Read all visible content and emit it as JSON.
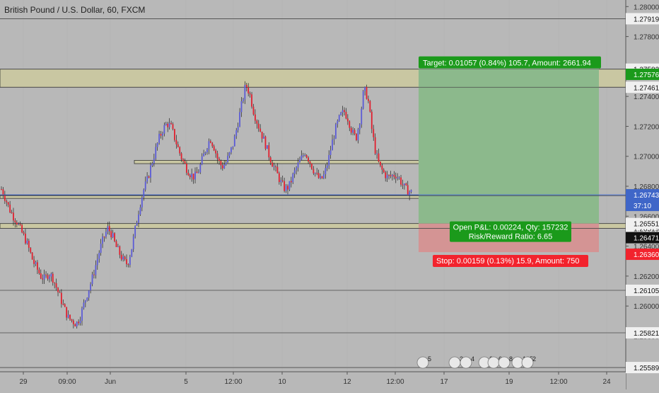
{
  "chart_data": {
    "type": "candlestick",
    "title": "British Pound / U.S. Dollar, 60, FXCM",
    "colors": {
      "background": "#b8b8b8",
      "up_candle": "#5b5bd6",
      "down_candle": "#e0202f",
      "zone_fill": "#c9c7a2",
      "target_zone": "#8cb98c",
      "stop_zone": "#d49494",
      "target_label": "#1b9a1b",
      "stop_label": "#f2232d",
      "current_price": "#3f66c8"
    },
    "price_axis": {
      "range": [
        1.25561,
        1.28044
      ],
      "ticks": [
        "1.28000",
        "1.27800",
        "1.27600",
        "1.27400",
        "1.27200",
        "1.27000",
        "1.26800",
        "1.26600",
        "1.26400",
        "1.26200",
        "1.26000",
        "1.25800"
      ]
    },
    "time_axis": {
      "labels": [
        "29",
        "09:00",
        "Jun",
        "5",
        "12:00",
        "10",
        "12",
        "12:00",
        "17",
        "19",
        "12:00",
        "24"
      ]
    },
    "horizontal_levels": [
      {
        "price": 1.27919,
        "label": "1.27919"
      },
      {
        "price": 1.27461,
        "label": "1.27461"
      },
      {
        "price": 1.26737,
        "label": "1.26737"
      },
      {
        "price": 1.26519,
        "label": "1.26519"
      },
      {
        "price": 1.26105,
        "label": "1.26105"
      },
      {
        "price": 1.25821,
        "label": "1.25821"
      },
      {
        "price": 1.25589,
        "label": "1.25589"
      }
    ],
    "price_markers": {
      "target": "1.27582",
      "target_2": "1.27576",
      "entry": "1.26551",
      "entry_2": "1.26471",
      "stop": "1.26360",
      "current": "1.26743",
      "countdown": "37:10"
    },
    "support_resistance_zones": [
      {
        "from": 1.27461,
        "to": 1.27582
      },
      {
        "from": 1.26951,
        "to": 1.26973
      },
      {
        "from": 1.26719,
        "to": 1.2674
      },
      {
        "from": 1.26519,
        "to": 1.26551
      }
    ],
    "position": {
      "target_text": "Target: 0.01057 (0.84%) 105.7, Amount: 2661.94",
      "open_pnl_text": "Open P&L: 0.00224, Qty: 157232",
      "risk_reward_text": "Risk/Reward Ratio: 6.65",
      "stop_text": "Stop: 0.00159 (0.13%) 15.9, Amount: 750"
    },
    "event_markers": [
      "5",
      "3",
      "4",
      "2",
      "6",
      "8",
      "165",
      "2"
    ],
    "close_series": [
      1.2678,
      1.2672,
      1.2665,
      1.266,
      1.2656,
      1.265,
      1.2645,
      1.2638,
      1.263,
      1.2625,
      1.262,
      1.2618,
      1.2622,
      1.2619,
      1.2612,
      1.2605,
      1.2598,
      1.2592,
      1.259,
      1.2588,
      1.2593,
      1.2602,
      1.261,
      1.2618,
      1.2628,
      1.2638,
      1.2646,
      1.2652,
      1.2648,
      1.264,
      1.2635,
      1.263,
      1.2628,
      1.2638,
      1.2652,
      1.2666,
      1.2677,
      1.2684,
      1.2694,
      1.2703,
      1.2712,
      1.2718,
      1.2722,
      1.272,
      1.2712,
      1.2704,
      1.2697,
      1.2692,
      1.2688,
      1.2686,
      1.269,
      1.2698,
      1.2706,
      1.2712,
      1.2706,
      1.2697,
      1.2693,
      1.2696,
      1.2702,
      1.271,
      1.2722,
      1.2735,
      1.2748,
      1.2742,
      1.273,
      1.2722,
      1.2715,
      1.2708,
      1.27,
      1.2694,
      1.2688,
      1.2682,
      1.2678,
      1.268,
      1.2687,
      1.2693,
      1.2698,
      1.2703,
      1.2698,
      1.2692,
      1.2687,
      1.2684,
      1.2688,
      1.2698,
      1.271,
      1.272,
      1.2727,
      1.273,
      1.2725,
      1.2716,
      1.2712,
      1.2725,
      1.2745,
      1.2739,
      1.2718,
      1.2702,
      1.2693,
      1.2689,
      1.2686,
      1.2687,
      1.2688,
      1.2685,
      1.268,
      1.2677,
      1.2676
    ]
  }
}
